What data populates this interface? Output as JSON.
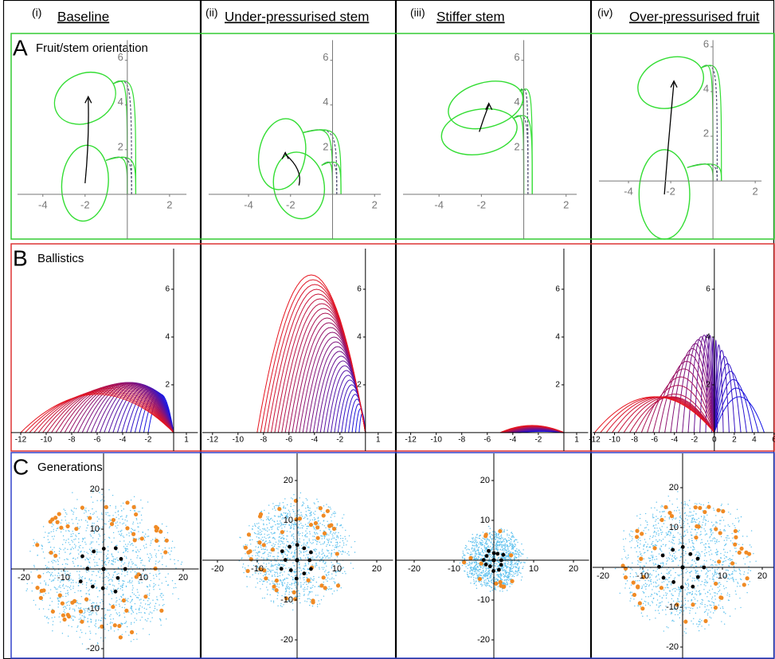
{
  "columns": [
    {
      "numeral": "(i)",
      "title": "Baseline"
    },
    {
      "numeral": "(ii)",
      "title": "Under-pressurised stem"
    },
    {
      "numeral": "(iii)",
      "title": "Stiffer stem"
    },
    {
      "numeral": "(iv)",
      "title": "Over-pressurised fruit"
    }
  ],
  "rows": [
    {
      "letter": "A",
      "title": "Fruit/stem orientation",
      "color": "#33cc33",
      "panels": [
        {
          "xlim": [
            -5.5,
            3.4
          ],
          "ylim": [
            -2,
            7.2
          ],
          "xticks": [
            -4,
            -2,
            2
          ],
          "yticks": [
            2,
            4,
            6
          ]
        },
        {
          "xlim": [
            -6.2,
            2.9
          ],
          "ylim": [
            -2,
            7.2
          ],
          "xticks": [
            -4,
            -2,
            2
          ],
          "yticks": [
            2,
            4,
            6
          ]
        },
        {
          "xlim": [
            -6.0,
            3.1
          ],
          "ylim": [
            -2,
            7.2
          ],
          "xticks": [
            -4,
            -2,
            2
          ],
          "yticks": [
            2,
            4,
            6
          ]
        },
        {
          "xlim": [
            -5.7,
            2.9
          ],
          "ylim": [
            -2.6,
            6.6
          ],
          "xticks": [
            -4,
            -2,
            2
          ],
          "yticks": [
            2,
            4,
            6
          ]
        }
      ]
    },
    {
      "letter": "B",
      "title": "Ballistics",
      "color": "#dd3333",
      "panels": [
        {
          "xlim": [
            -12.75,
            2
          ],
          "ylim": [
            -0.77,
            7.9
          ],
          "xticks": [
            -12,
            -10,
            -8,
            -6,
            -4,
            -2,
            1
          ],
          "yticks": [
            2,
            4,
            6
          ]
        },
        {
          "xlim": [
            -12.8,
            2.2
          ],
          "ylim": [
            -0.77,
            7.9
          ],
          "xticks": [
            -12,
            -10,
            -8,
            -6,
            -4,
            -2,
            1
          ],
          "yticks": [
            2,
            4,
            6
          ]
        },
        {
          "xlim": [
            -13.1,
            2
          ],
          "ylim": [
            -0.77,
            7.9
          ],
          "xticks": [
            -12,
            -10,
            -8,
            -6,
            -4,
            -2,
            1
          ],
          "yticks": [
            2,
            4,
            6
          ]
        },
        {
          "xlim": [
            -12.2,
            6
          ],
          "ylim": [
            -0.77,
            7.9
          ],
          "xticks": [
            -12,
            -10,
            -8,
            -6,
            -4,
            -2,
            0,
            2,
            4,
            6
          ],
          "yticks": [
            2,
            4,
            6
          ]
        }
      ]
    },
    {
      "letter": "C",
      "title": "Generations",
      "color": "#3344cc",
      "panels": [
        {
          "xlim": [
            -23.2,
            24
          ],
          "ylim": [
            -22.4,
            29.2
          ],
          "xticks": [
            -20,
            -10,
            10,
            20
          ],
          "yticks": [
            20,
            10,
            -10,
            -20
          ]
        },
        {
          "xlim": [
            -23.8,
            24.2
          ],
          "ylim": [
            -24.6,
            27
          ],
          "xticks": [
            -20,
            -10,
            10,
            20
          ],
          "yticks": [
            20,
            10,
            -10,
            -20
          ]
        },
        {
          "xlim": [
            -24.4,
            24
          ],
          "ylim": [
            -24.6,
            27
          ],
          "xticks": [
            -20,
            -10,
            10,
            20
          ],
          "yticks": [
            20,
            10,
            -10,
            -20
          ]
        },
        {
          "xlim": [
            -22.6,
            23
          ],
          "ylim": [
            -22.8,
            28.8
          ],
          "xticks": [
            -20,
            -10,
            10,
            20
          ],
          "yticks": [
            20,
            10,
            -10,
            -20
          ]
        }
      ]
    }
  ]
}
